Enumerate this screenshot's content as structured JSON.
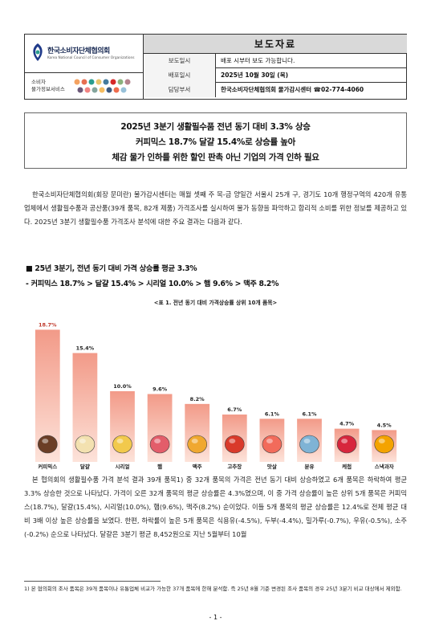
{
  "header": {
    "org_name": "한국소비자단체협의회",
    "org_name_en": "Korea National Council of Consumer Organizations",
    "service_name_1": "소비자",
    "service_name_2": "물가정보서비스",
    "doc_type": "보도자료",
    "rows": [
      {
        "label": "보도일시",
        "value": "배포 시부터 보도 가능합니다.",
        "bold": false
      },
      {
        "label": "배포일시",
        "value": "2025년 10월 30일 (목)",
        "bold": true
      },
      {
        "label": "담당부서",
        "value": "한국소비자단체협의회 물가감시센터 ☎02-774-4060",
        "bold": true
      }
    ]
  },
  "headline": [
    "2025년 3분기 생활필수품 전년 동기 대비 3.3% 상승",
    "커피믹스 18.7% 달걀 15.4%로 상승률 높아",
    "체감 물가 인하를 위한 할인 판촉 아닌 기업의 가격 인하 필요"
  ],
  "intro": "한국소비자단체협의회(회장 문미란) 물가감시센터는 매월 셋째 주 목-금 양일간 서울시 25개 구, 경기도 10개 행정구역의 420개 유통업체에서 생활필수품과 공산품(39개 품목, 82개 제품) 가격조사를 실시하여 물가 동향을 파악하고 합리적 소비를 위한 정보를 제공하고 있다. 2025년 3분기 생활필수품 가격조사 분석에 대한 주요 결과는 다음과 같다.",
  "section": {
    "heading": "■ 25년 3분기, 전년 동기 대비 가격 상승률 평균 3.3%",
    "subheading": "- 커피믹스 18.7% > 달걀 15.4% > 시리얼 10.0% > 햄 9.6% > 맥주 8.2%"
  },
  "figure_caption": "<표 1. 전년 동기 대비 가격상승률 상위 10개 품목>",
  "chart_data": {
    "type": "bar",
    "title": "<표 1. 전년 동기 대비 가격상승률 상위 10개 품목>",
    "categories": [
      "커피믹스",
      "달걀",
      "시리얼",
      "햄",
      "맥주",
      "고추장",
      "맛살",
      "분유",
      "케첩",
      "스낵과자"
    ],
    "values": [
      18.7,
      15.4,
      10.0,
      9.6,
      8.2,
      6.7,
      6.1,
      6.1,
      4.7,
      4.5
    ],
    "value_labels": [
      "18.7%",
      "15.4%",
      "10.0%",
      "9.6%",
      "8.2%",
      "6.7%",
      "6.1%",
      "6.1%",
      "4.7%",
      "4.5%"
    ],
    "ylim": [
      0,
      20
    ],
    "bar_color_top": "#f29a88",
    "bar_color_bottom": "#fde3da",
    "top_label_color": "#c0392b",
    "legend": false,
    "grid": false
  },
  "body": "본 협의회의 생활필수품 가격 분석 결과 39개 품목1) 중 32개 품목의 가격은 전년 동기 대비 상승하였고 6개 품목은 하락하여 평균 3.3% 상승한 것으로 나타났다. 가격이 오른 32개 품목의 평균 상승률은 4.3%였으며, 이 중 가격 상승률이 높은 상위 5개 품목은 커피믹스(18.7%), 달걀(15.4%), 시리얼(10.0%), 햄(9.6%), 맥주(8.2%) 순이었다. 이들 5개 품목의 평균 상승률은 12.4%로 전체 평균 대비 3배 이상 높은 상승률을 보였다. 한편, 하락률이 높은 5개 품목은 식용유(-4.5%), 두부(-4.4%), 밀가루(-0.7%), 우유(-0.5%), 소주(-0.2%) 순으로 나타났다. 달걀은 3분기 평균 8,452원으로 지난 5월부터 10월",
  "footnote": "1) 본 협의회의 조사 품목은 39개 품목이나 유통업체 비교가 가능한 37개 품목에 한해 분석함. 즉 25년 8월 기준 변경된 조사 품목의 경우 25년 3분기 비교 대상에서 제외함.",
  "page_number": "- 1 -"
}
